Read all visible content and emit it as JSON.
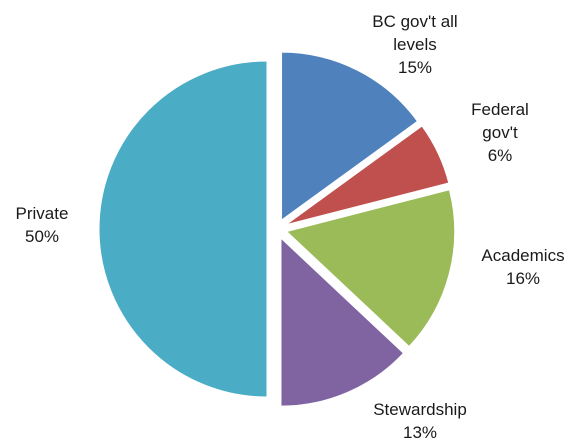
{
  "chart_data": {
    "type": "pie",
    "slices": [
      {
        "label": "BC gov't all levels",
        "label_lines": [
          "BC gov't all",
          "levels"
        ],
        "value": 15,
        "value_text": "15%",
        "color": "#4f81bd"
      },
      {
        "label": "Federal gov't",
        "label_lines": [
          "Federal",
          "gov't"
        ],
        "value": 6,
        "value_text": "6%",
        "color": "#c0504d"
      },
      {
        "label": "Academics",
        "label_lines": [
          "Academics"
        ],
        "value": 16,
        "value_text": "16%",
        "color": "#9bbb59"
      },
      {
        "label": "Stewardship",
        "label_lines": [
          "Stewardship"
        ],
        "value": 13,
        "value_text": "13%",
        "color": "#8064a2"
      },
      {
        "label": "Private",
        "label_lines": [
          "Private"
        ],
        "value": 50,
        "value_text": "50%",
        "color": "#4bacc6"
      }
    ],
    "legend": "none",
    "data_labels": "outside"
  }
}
